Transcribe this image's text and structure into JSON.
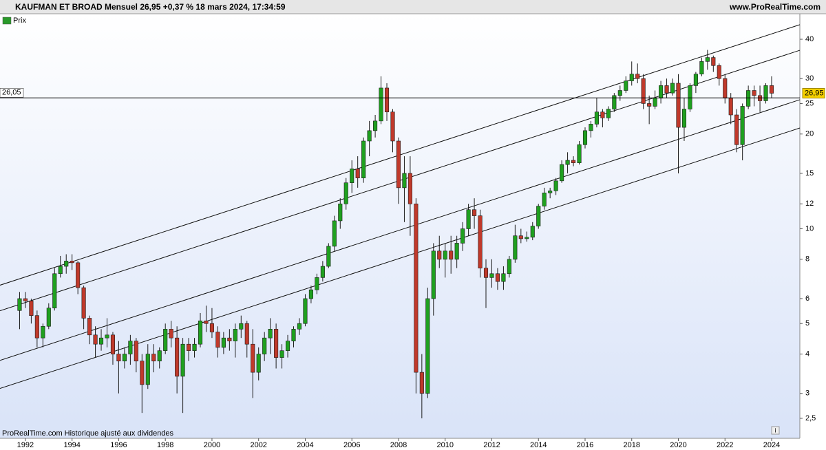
{
  "chart_data": {
    "type": "candlestick",
    "title": "KAUFMAN ET BROAD Mensuel 26,95 +0,37 % 18 mars 2024, 17:34:59",
    "source": "www.ProRealTime.com",
    "legend": "Prix",
    "footnote": "ProRealTime.com  Historique ajusté aux dividendes",
    "log_scale": true,
    "up_color": "#1fa01f",
    "down_color": "#c0392b",
    "xlim": [
      1990.91,
      2025.21
    ],
    "xticks": [
      1992,
      1994,
      1996,
      1998,
      2000,
      2002,
      2004,
      2006,
      2008,
      2010,
      2012,
      2014,
      2016,
      2018,
      2020,
      2022,
      2024
    ],
    "ylim": [
      2.16,
      48.2
    ],
    "yticks": [
      {
        "value": 2.5,
        "label": "2,5"
      },
      3,
      4,
      5,
      6,
      8,
      10,
      12,
      15,
      20,
      25,
      30,
      40
    ],
    "hline": {
      "value": 26.05,
      "label": "26,05"
    },
    "last_price": {
      "value": 26.95,
      "label": "26,95"
    },
    "trend_lines": [
      {
        "x": [
          1990.91,
          2025.21
        ],
        "y": [
          6.62,
          44.5
        ]
      },
      {
        "x": [
          1990.91,
          2025.21
        ],
        "y": [
          5.49,
          36.9
        ]
      },
      {
        "x": [
          1990.91,
          2025.21
        ],
        "y": [
          3.82,
          25.7
        ]
      },
      {
        "x": [
          1990.91,
          2025.21
        ],
        "y": [
          3.11,
          20.9
        ]
      }
    ],
    "x": [
      1991.75,
      1992,
      1992.25,
      1992.5,
      1992.75,
      1993,
      1993.25,
      1993.5,
      1993.75,
      1994,
      1994.25,
      1994.5,
      1994.75,
      1995,
      1995.25,
      1995.5,
      1995.75,
      1996,
      1996.25,
      1996.5,
      1996.75,
      1997,
      1997.25,
      1997.5,
      1997.75,
      1998,
      1998.25,
      1998.5,
      1998.75,
      1999,
      1999.25,
      1999.5,
      1999.75,
      2000,
      2000.25,
      2000.5,
      2000.75,
      2001,
      2001.25,
      2001.5,
      2001.75,
      2002,
      2002.25,
      2002.5,
      2002.75,
      2003,
      2003.25,
      2003.5,
      2003.75,
      2004,
      2004.25,
      2004.5,
      2004.75,
      2005,
      2005.25,
      2005.5,
      2005.75,
      2006,
      2006.25,
      2006.5,
      2006.75,
      2007,
      2007.25,
      2007.5,
      2007.75,
      2008,
      2008.25,
      2008.5,
      2008.75,
      2009,
      2009.25,
      2009.5,
      2009.75,
      2010,
      2010.25,
      2010.5,
      2010.75,
      2011,
      2011.25,
      2011.5,
      2011.75,
      2012,
      2012.25,
      2012.5,
      2012.75,
      2013,
      2013.25,
      2013.5,
      2013.75,
      2014,
      2014.25,
      2014.5,
      2014.75,
      2015,
      2015.25,
      2015.5,
      2015.75,
      2016,
      2016.25,
      2016.5,
      2016.75,
      2017,
      2017.25,
      2017.5,
      2017.75,
      2018,
      2018.25,
      2018.5,
      2018.75,
      2019,
      2019.25,
      2019.5,
      2019.75,
      2020,
      2020.25,
      2020.5,
      2020.75,
      2021,
      2021.25,
      2021.5,
      2021.75,
      2022,
      2022.25,
      2022.5,
      2022.75,
      2023,
      2023.25,
      2023.5,
      2023.75,
      2024
    ],
    "open": [
      5.5,
      6.0,
      5.9,
      5.3,
      4.5,
      4.9,
      5.6,
      7.2,
      7.6,
      7.9,
      7.8,
      6.5,
      5.2,
      4.6,
      4.3,
      4.5,
      4.6,
      4.0,
      3.8,
      4.0,
      4.4,
      3.8,
      3.2,
      4.0,
      3.8,
      4.1,
      4.8,
      4.5,
      3.4,
      4.3,
      4.1,
      4.3,
      5.1,
      5.0,
      4.7,
      4.2,
      4.5,
      4.4,
      4.8,
      5.0,
      4.3,
      3.5,
      4.0,
      4.5,
      4.8,
      3.9,
      4.1,
      4.4,
      4.8,
      5.0,
      6.0,
      6.4,
      7.0,
      7.6,
      8.8,
      10.6,
      12.0,
      14.0,
      15.5,
      14.5,
      19.0,
      20.5,
      22.0,
      28.0,
      23.5,
      19.0,
      13.5,
      15.0,
      12.0,
      3.5,
      3.0,
      6.0,
      8.5,
      8.0,
      8.5,
      8.0,
      9.0,
      10.0,
      11.5,
      11.0,
      7.5,
      7.0,
      7.2,
      6.8,
      7.2,
      8.0,
      9.5,
      9.3,
      9.4,
      10.2,
      11.8,
      13.0,
      13.2,
      14.2,
      16.0,
      16.5,
      16.2,
      18.5,
      20.5,
      21.5,
      23.5,
      22.5,
      24.0,
      26.5,
      27.5,
      29.5,
      31.0,
      30.0,
      25.0,
      24.5,
      26.0,
      28.5,
      27.0,
      29.0,
      21.0,
      24.0,
      28.5,
      31.0,
      34.0,
      35.0,
      33.0,
      30.0,
      26.0,
      23.0,
      18.5,
      24.5,
      27.5,
      26.5,
      25.5,
      28.5
    ],
    "high": [
      6.3,
      6.3,
      6.0,
      5.5,
      5.0,
      5.8,
      7.5,
      8.2,
      8.3,
      8.3,
      7.9,
      6.6,
      5.3,
      4.9,
      4.8,
      5.2,
      4.7,
      4.4,
      4.2,
      4.6,
      4.5,
      4.0,
      4.3,
      4.3,
      4.2,
      5.0,
      5.1,
      4.9,
      4.5,
      4.5,
      4.5,
      5.4,
      5.7,
      5.6,
      4.9,
      4.7,
      4.8,
      5.0,
      5.3,
      5.1,
      4.8,
      4.2,
      4.7,
      5.2,
      5.0,
      4.3,
      4.6,
      4.9,
      5.2,
      6.2,
      6.6,
      7.2,
      7.9,
      9.0,
      11.0,
      12.5,
      14.5,
      16.5,
      17.0,
      19.5,
      22.0,
      23.0,
      30.5,
      29.0,
      24.0,
      19.5,
      17.0,
      17.0,
      12.5,
      4.0,
      6.5,
      9.0,
      9.5,
      9.0,
      9.5,
      9.5,
      10.5,
      12.0,
      12.5,
      11.5,
      8.0,
      8.0,
      7.5,
      7.6,
      8.2,
      10.3,
      10.0,
      9.8,
      10.5,
      12.0,
      13.5,
      13.5,
      14.5,
      16.5,
      17.5,
      17.0,
      19.0,
      21.0,
      22.0,
      26.0,
      24.0,
      24.5,
      27.0,
      28.5,
      30.5,
      34.0,
      33.5,
      31.0,
      26.5,
      27.5,
      29.5,
      30.0,
      30.0,
      31.0,
      26.0,
      29.0,
      31.5,
      35.0,
      37.0,
      35.5,
      33.5,
      31.0,
      27.0,
      24.0,
      25.0,
      28.5,
      28.5,
      28.5,
      29.0,
      30.5
    ],
    "low": [
      4.8,
      5.6,
      5.0,
      4.2,
      4.2,
      4.8,
      5.5,
      7.0,
      7.2,
      7.4,
      6.2,
      4.8,
      4.3,
      3.9,
      4.1,
      4.2,
      3.7,
      3.0,
      3.6,
      3.7,
      3.5,
      2.6,
      3.1,
      3.5,
      3.6,
      4.0,
      4.2,
      3.0,
      2.6,
      3.8,
      3.9,
      4.2,
      4.7,
      4.5,
      3.9,
      4.0,
      4.1,
      3.9,
      4.5,
      3.9,
      2.9,
      3.3,
      3.8,
      4.0,
      3.6,
      3.6,
      3.9,
      4.2,
      4.6,
      4.9,
      5.8,
      6.2,
      6.8,
      7.5,
      8.5,
      10.0,
      11.5,
      13.0,
      13.5,
      14.0,
      17.0,
      19.5,
      21.5,
      22.0,
      17.5,
      12.0,
      10.5,
      9.5,
      3.0,
      2.5,
      2.9,
      5.3,
      7.5,
      7.0,
      7.2,
      7.5,
      8.5,
      9.5,
      10.0,
      7.0,
      5.6,
      6.5,
      6.4,
      6.4,
      7.0,
      7.8,
      9.0,
      9.1,
      9.2,
      10.0,
      11.5,
      12.5,
      12.8,
      14.0,
      15.0,
      15.8,
      16.0,
      18.0,
      19.5,
      21.0,
      21.0,
      22.0,
      23.5,
      25.5,
      27.0,
      28.5,
      29.0,
      24.0,
      21.5,
      24.0,
      25.0,
      26.0,
      26.5,
      15.0,
      19.0,
      23.5,
      27.0,
      30.5,
      32.0,
      31.5,
      28.5,
      25.0,
      21.5,
      17.5,
      16.5,
      24.0,
      24.5,
      23.5,
      25.0,
      26.0
    ],
    "close": [
      6.0,
      5.9,
      5.3,
      4.5,
      4.9,
      5.6,
      7.2,
      7.6,
      7.9,
      7.8,
      6.5,
      5.2,
      4.6,
      4.3,
      4.5,
      4.6,
      4.0,
      3.8,
      4.0,
      4.4,
      3.8,
      3.2,
      4.0,
      3.8,
      4.1,
      4.8,
      4.5,
      3.4,
      4.3,
      4.1,
      4.3,
      5.1,
      5.0,
      4.7,
      4.2,
      4.5,
      4.4,
      4.8,
      5.0,
      4.3,
      3.5,
      4.0,
      4.5,
      4.8,
      3.9,
      4.1,
      4.4,
      4.8,
      5.0,
      6.0,
      6.4,
      7.0,
      7.6,
      8.8,
      10.6,
      12.0,
      14.0,
      15.5,
      14.5,
      19.0,
      20.5,
      22.0,
      28.0,
      23.5,
      19.0,
      13.5,
      15.0,
      12.0,
      3.5,
      3.0,
      6.0,
      8.5,
      8.0,
      8.5,
      8.0,
      9.0,
      10.0,
      11.5,
      11.0,
      7.5,
      7.0,
      7.2,
      6.8,
      7.2,
      8.0,
      9.5,
      9.3,
      9.4,
      10.2,
      11.8,
      13.0,
      13.2,
      14.2,
      16.0,
      16.5,
      16.2,
      18.5,
      20.5,
      21.5,
      23.5,
      22.5,
      24.0,
      26.5,
      27.5,
      29.5,
      31.0,
      30.0,
      25.0,
      24.5,
      26.0,
      28.5,
      27.0,
      29.0,
      21.0,
      24.0,
      28.5,
      31.0,
      34.0,
      35.0,
      33.0,
      30.0,
      26.0,
      23.0,
      18.5,
      24.5,
      27.5,
      26.5,
      25.5,
      28.5,
      26.95
    ]
  }
}
